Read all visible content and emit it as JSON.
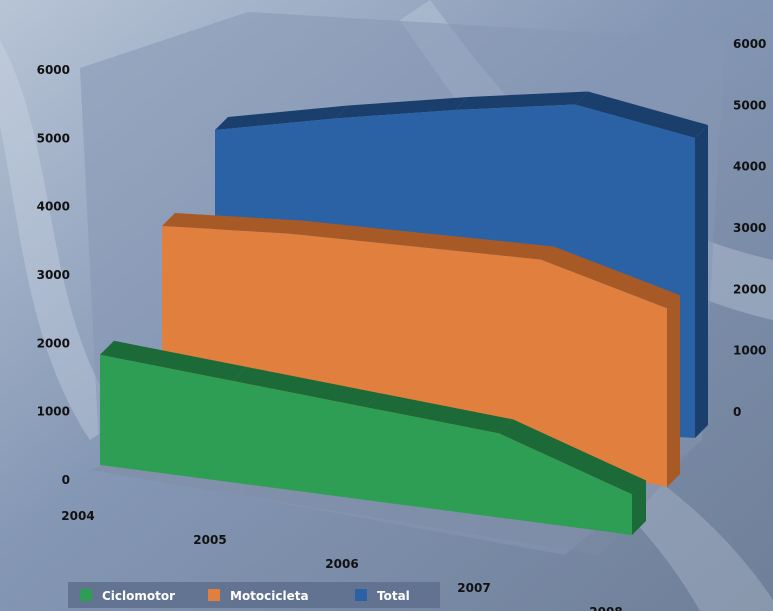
{
  "chart_data": {
    "type": "area",
    "categories": [
      "2004",
      "2005",
      "2006",
      "2007",
      "2008"
    ],
    "series": [
      {
        "name": "Ciclomotor",
        "values": [
          1900,
          1750,
          1600,
          1450,
          700
        ],
        "color": "#2e9e55",
        "side_color": "#1b6a37"
      },
      {
        "name": "Motocicleta",
        "values": [
          2800,
          3150,
          3400,
          3650,
          3250
        ],
        "color": "#e07f3e",
        "side_color": "#a85a26"
      },
      {
        "name": "Total",
        "values": [
          4700,
          5000,
          5250,
          5450,
          5000
        ],
        "color": "#2a62a5",
        "side_color": "#1b3f6d"
      }
    ],
    "y_ticks_left": [
      0,
      1000,
      2000,
      3000,
      4000,
      5000,
      6000
    ],
    "y_ticks_right": [
      0,
      1000,
      2000,
      3000,
      4000,
      5000,
      6000
    ],
    "ylim": [
      0,
      6000
    ],
    "legend_position": "bottom-left",
    "three_d": true
  }
}
